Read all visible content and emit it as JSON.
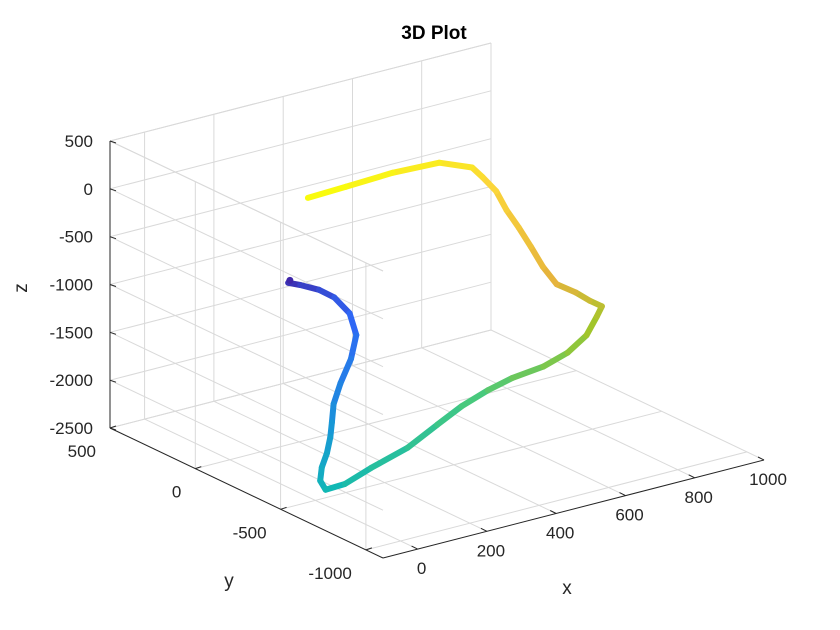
{
  "chart_data": {
    "type": "line",
    "title": "3D Plot",
    "xlabel": "x",
    "ylabel": "y",
    "zlabel": "z",
    "xlim": [
      -100,
      1000
    ],
    "ylim": [
      -1100,
      500
    ],
    "zlim": [
      -2500,
      500
    ],
    "xticks": [
      0,
      200,
      400,
      600,
      800,
      1000
    ],
    "yticks": [
      500,
      0,
      -500,
      -1000
    ],
    "zticks": [
      500,
      0,
      -500,
      -1000,
      -1500,
      -2000,
      -2500
    ],
    "xtick_labels": [
      "0",
      "200",
      "400",
      "600",
      "800",
      "1000"
    ],
    "ytick_labels": [
      "500",
      "0",
      "-500",
      "-1000"
    ],
    "ztick_labels": [
      "500",
      "0",
      "-500",
      "-1000",
      "-1500",
      "-2000",
      "-2500"
    ],
    "grid": true,
    "colormap": "parula",
    "colormap_colors": [
      "#3e26a8",
      "#2f67f5",
      "#1898d6",
      "#11b8b4",
      "#48c97d",
      "#a1c52b",
      "#e6b43c",
      "#fbd63a",
      "#f9fb0e"
    ],
    "series": [
      {
        "x": [
          50,
          45,
          55,
          60,
          55,
          40,
          20,
          -20,
          -60,
          -80,
          -80,
          -70,
          -60,
          -50,
          -30,
          20,
          120,
          240,
          380,
          500,
          600,
          700,
          790,
          890,
          960,
          1000,
          1010,
          1000,
          950,
          900,
          840,
          800,
          770,
          740,
          710,
          690,
          660,
          640,
          560,
          440,
          320,
          220
        ],
        "y": [
          -250,
          -250,
          -300,
          -400,
          -500,
          -620,
          -700,
          -750,
          -770,
          -770,
          -760,
          -730,
          -690,
          -640,
          -590,
          -520,
          -430,
          -340,
          -270,
          -200,
          -140,
          -90,
          -50,
          -30,
          -30,
          -60,
          -100,
          -150,
          -180,
          -200,
          -210,
          -210,
          -200,
          -190,
          -180,
          -160,
          -140,
          -120,
          -90,
          -60,
          -30,
          -10
        ],
        "z": [
          -460,
          -480,
          -470,
          -440,
          -430,
          -480,
          -620,
          -790,
          -990,
          -1190,
          -1390,
          -1580,
          -1790,
          -1990,
          -2190,
          -2390,
          -2500,
          -2520,
          -2500,
          -2430,
          -2380,
          -2350,
          -2340,
          -2330,
          -2250,
          -2080,
          -1860,
          -1700,
          -1570,
          -1420,
          -1270,
          -1050,
          -820,
          -600,
          -400,
          -200,
          -40,
          60,
          160,
          140,
          80,
          40
        ]
      }
    ]
  }
}
